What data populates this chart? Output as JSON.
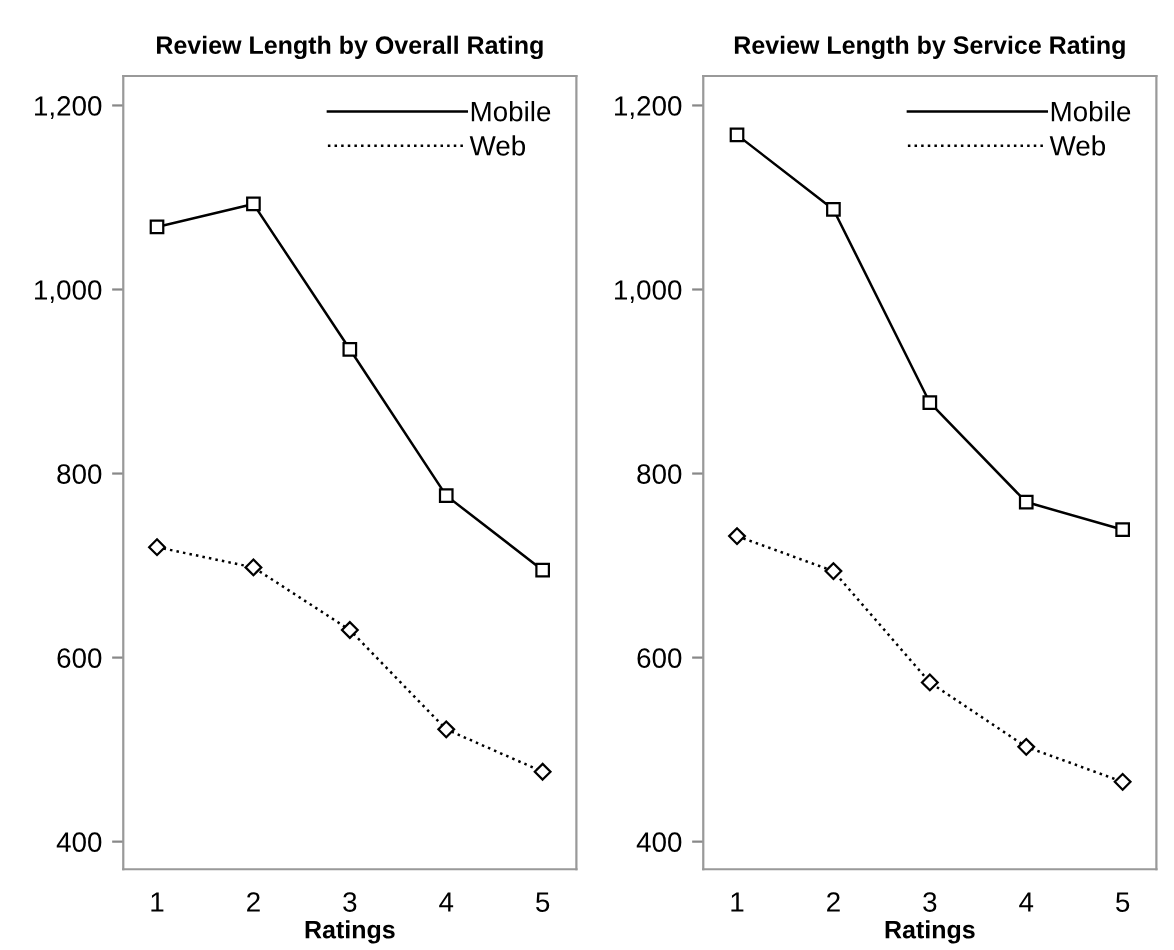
{
  "chart_data": [
    {
      "type": "line",
      "title": "Review Length by Overall Rating",
      "xlabel": "Ratings",
      "categories": [
        "1",
        "2",
        "3",
        "4",
        "5"
      ],
      "ylim": [
        370,
        1232
      ],
      "yticks": [
        {
          "value": 400,
          "label": "400"
        },
        {
          "value": 600,
          "label": "600"
        },
        {
          "value": 800,
          "label": "800"
        },
        {
          "value": 1000,
          "label": "1,000"
        },
        {
          "value": 1200,
          "label": "1,200"
        }
      ],
      "grid": false,
      "legend": "top right",
      "series": [
        {
          "name": "Mobile",
          "color": "#000000",
          "marker": "square",
          "line_style": "solid",
          "values": [
            1068,
            1093,
            935,
            776,
            695
          ]
        },
        {
          "name": "Web",
          "color": "#000000",
          "marker": "diamond",
          "line_style": "dotted",
          "values": [
            720,
            698,
            630,
            522,
            476
          ]
        }
      ]
    },
    {
      "type": "line",
      "title": "Review Length by Service Rating",
      "xlabel": "Ratings",
      "categories": [
        "1",
        "2",
        "3",
        "4",
        "5"
      ],
      "ylim": [
        370,
        1232
      ],
      "yticks": [
        {
          "value": 400,
          "label": "400"
        },
        {
          "value": 600,
          "label": "600"
        },
        {
          "value": 800,
          "label": "800"
        },
        {
          "value": 1000,
          "label": "1,000"
        },
        {
          "value": 1200,
          "label": "1,200"
        }
      ],
      "grid": false,
      "legend": "top right",
      "series": [
        {
          "name": "Mobile",
          "color": "#000000",
          "marker": "square",
          "line_style": "solid",
          "values": [
            1168,
            1087,
            877,
            769,
            739
          ]
        },
        {
          "name": "Web",
          "color": "#000000",
          "marker": "diamond",
          "line_style": "dotted",
          "values": [
            732,
            694,
            573,
            503,
            465
          ]
        }
      ]
    }
  ]
}
